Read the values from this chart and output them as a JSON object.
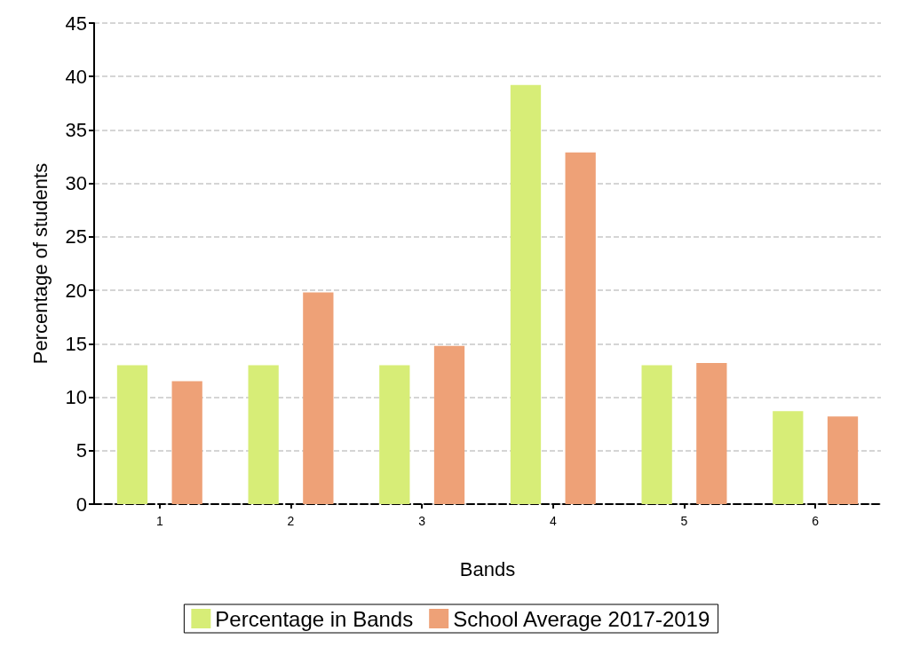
{
  "chart_data": {
    "type": "bar",
    "xlabel": "Bands",
    "ylabel": "Percentage of students",
    "categories": [
      "1",
      "2",
      "3",
      "4",
      "5",
      "6"
    ],
    "series": [
      {
        "name": "Percentage in Bands",
        "color": "#d7ed77",
        "values": [
          13.0,
          13.0,
          13.0,
          39.2,
          13.0,
          8.7
        ]
      },
      {
        "name": "School Average 2017-2019",
        "color": "#eea177",
        "values": [
          11.5,
          19.8,
          14.8,
          32.9,
          13.2,
          8.2
        ]
      }
    ],
    "ylim": [
      0,
      45
    ],
    "yticks": [
      0,
      5,
      10,
      15,
      20,
      25,
      30,
      35,
      40,
      45
    ],
    "grid": "y",
    "legend": "bottom"
  }
}
